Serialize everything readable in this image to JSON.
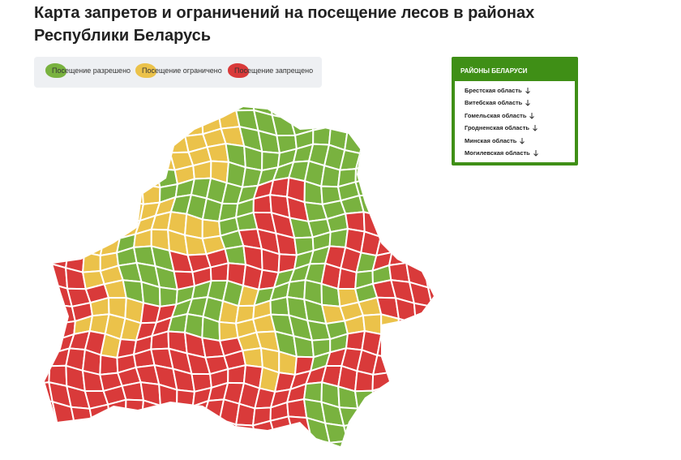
{
  "header": {
    "title_line1": "Карта запретов и ограничений на посещение лесов в районах",
    "title_line2": "Республики Беларусь"
  },
  "legend": {
    "items": [
      "Посещение разрешено",
      "Посещение ограничено",
      "Посещение запрещено"
    ]
  },
  "panel": {
    "title": "РАЙОНЫ БЕЛАРУСИ",
    "regions": [
      "Брестская область",
      "Витебская область",
      "Гомельская область",
      "Гродненская область",
      "Минская область",
      "Могилевская область"
    ]
  }
}
